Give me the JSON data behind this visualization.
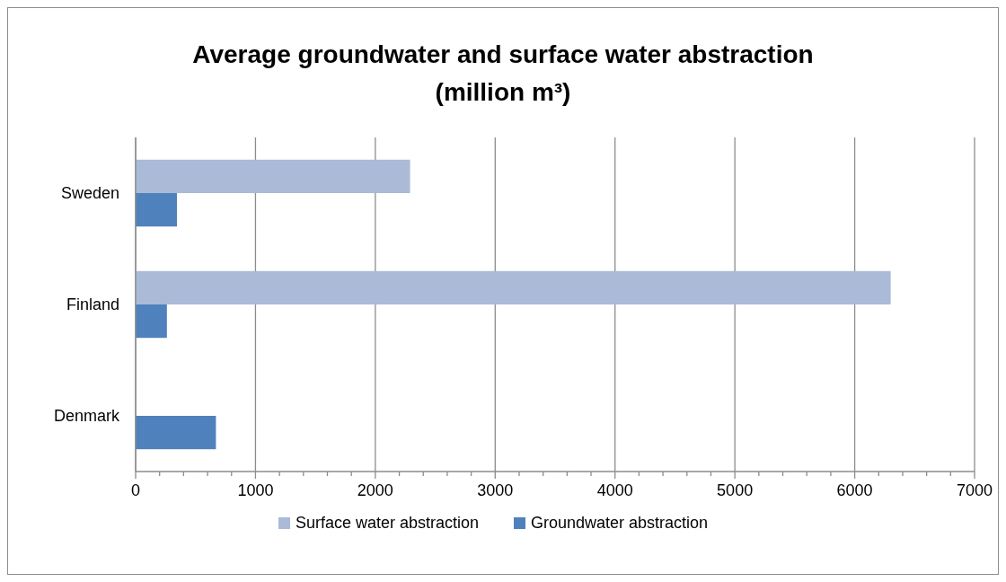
{
  "chart_data": {
    "type": "bar",
    "orientation": "horizontal",
    "title": "Average groundwater and surface water abstraction (million m³)",
    "categories": [
      "Sweden",
      "Finland",
      "Denmark"
    ],
    "series": [
      {
        "name": "Surface water abstraction",
        "color": "#aabad7",
        "values": [
          2290,
          6300,
          null
        ]
      },
      {
        "name": "Groundwater abstraction",
        "color": "#4f81bd",
        "values": [
          345,
          261,
          670
        ]
      }
    ],
    "xlim": [
      0,
      7000
    ],
    "xticks": [
      0,
      {
        "value": 200,
        "label": null
      },
      {
        "value": 400,
        "label": null
      },
      {
        "value": 600,
        "label": null
      },
      {
        "value": 800,
        "label": null
      },
      1000,
      {
        "value": 1200,
        "label": null
      },
      {
        "value": 1400,
        "label": null
      },
      {
        "value": 1600,
        "label": null
      },
      {
        "value": 1800,
        "label": null
      },
      2000,
      {
        "value": 2200,
        "label": null
      },
      {
        "value": 2400,
        "label": null
      },
      {
        "value": 2600,
        "label": null
      },
      {
        "value": 2800,
        "label": null
      },
      3000,
      {
        "value": 3200,
        "label": null
      },
      {
        "value": 3400,
        "label": null
      },
      {
        "value": 3600,
        "label": null
      },
      {
        "value": 3800,
        "label": null
      },
      4000,
      {
        "value": 4200,
        "label": null
      },
      {
        "value": 4400,
        "label": null
      },
      {
        "value": 4600,
        "label": null
      },
      {
        "value": 4800,
        "label": null
      },
      5000,
      {
        "value": 5200,
        "label": null
      },
      {
        "value": 5400,
        "label": null
      },
      {
        "value": 5600,
        "label": null
      },
      {
        "value": 5800,
        "label": null
      },
      6000,
      {
        "value": 6200,
        "label": null
      },
      {
        "value": 6400,
        "label": null
      },
      {
        "value": 6600,
        "label": null
      },
      {
        "value": 6800,
        "label": null
      },
      7000
    ],
    "grid": "x",
    "legend": "bottom"
  }
}
